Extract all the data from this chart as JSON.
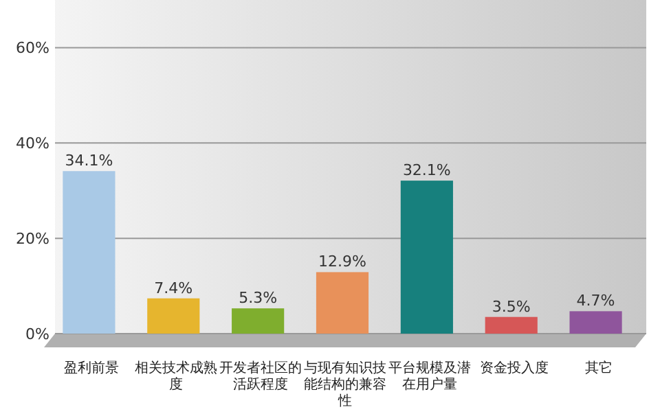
{
  "chart_data": {
    "type": "bar",
    "categories": [
      "盈利前景",
      "相关技术成熟度",
      "开发者社区的活跃程度",
      "与现有知识技能结构的兼容性",
      "平台规模及潜在用户量",
      "资金投入度",
      "其它"
    ],
    "values": [
      34.1,
      7.4,
      5.3,
      12.9,
      32.1,
      3.5,
      4.7
    ],
    "value_labels": [
      "34.1%",
      "7.4%",
      "5.3%",
      "12.9%",
      "32.1%",
      "3.5%",
      "4.7%"
    ],
    "colors": [
      "#a9c9e6",
      "#e6b52e",
      "#7fae2e",
      "#e8915a",
      "#17807d",
      "#d65757",
      "#8f559c"
    ],
    "ylim": [
      0,
      70
    ],
    "yticks": [
      {
        "value": 0,
        "label": "0%"
      },
      {
        "value": 20,
        "label": "20%"
      },
      {
        "value": 40,
        "label": "40%"
      },
      {
        "value": 60,
        "label": "60%"
      }
    ],
    "grid": "y"
  }
}
